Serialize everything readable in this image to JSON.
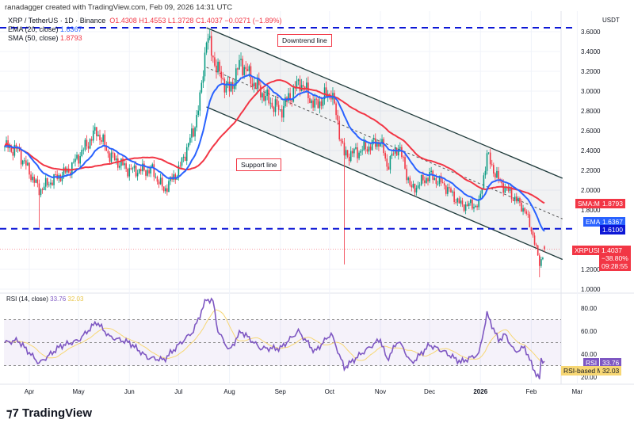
{
  "header": {
    "credit": "ranadagger created with TradingView.com, Feb 09, 2026 14:31 UTC",
    "symbol": "XRP / TetherUS · 1D · Binance",
    "o": "O1.4308",
    "h": "H1.4553",
    "l": "L1.3728",
    "c": "C1.4037",
    "chg": "−0.0271 (−1.89%)",
    "ema_label": "EMA (20, close)",
    "ema_val": "1.6367",
    "sma_label": "SMA (50, close)",
    "sma_val": "1.8793",
    "rsi_label": "RSI (14, close)",
    "rsi_val": "33.76",
    "rsi_ma_val": "32.03"
  },
  "axis": {
    "currency": "USDT",
    "price_ticks": [
      "3.6000",
      "3.4000",
      "3.2000",
      "3.0000",
      "2.8000",
      "2.6000",
      "2.4000",
      "2.2000",
      "2.0000",
      "1.8000",
      "1.2000",
      "1.0000"
    ],
    "rsi_ticks": [
      "80.00",
      "60.00",
      "40.00",
      "20.00"
    ],
    "time_ticks": [
      "Apr",
      "May",
      "Jun",
      "Jul",
      "Aug",
      "Sep",
      "Oct",
      "Nov",
      "Dec",
      "2026",
      "Feb",
      "Mar"
    ]
  },
  "tags": {
    "sma": "SMA:MA",
    "sma_val": "1.8793",
    "ema": "EMA",
    "ema_val": "1.6367",
    "level": "1.6100",
    "sym": "XRPUSDT",
    "price": "1.4037",
    "pct": "−38.80%",
    "timer": "09:28:55",
    "rsi": "RSI",
    "rsi_val": "33.76",
    "rsi_ma": "RSI-based MA",
    "rsi_ma_val": "32.03"
  },
  "annotations": {
    "downtrend": "Downtrend line",
    "support": "Support line"
  },
  "logo": "TradingView",
  "colors": {
    "up": "#089981",
    "down": "#f23645",
    "ema": "#2962ff",
    "sma": "#f23645",
    "rsi": "#7e57c2",
    "rsi_ma": "#f7d774",
    "level": "#0c17d6"
  },
  "chart_data": {
    "type": "candlestick",
    "title": "XRP / TetherUS · 1D · Binance",
    "ylim": [
      1.0,
      3.7
    ],
    "levels": [
      3.64,
      1.61
    ],
    "channel": {
      "upper": [
        [
          "2025-07-18",
          3.64
        ],
        [
          "2026-02-20",
          2.12
        ]
      ],
      "lower": [
        [
          "2025-07-18",
          2.84
        ],
        [
          "2026-02-20",
          1.3
        ]
      ]
    },
    "close_anchors": [
      [
        "2025-03-17",
        2.44
      ],
      [
        "2025-03-25",
        2.4
      ],
      [
        "2025-04-07",
        2.0
      ],
      [
        "2025-04-15",
        2.1
      ],
      [
        "2025-04-25",
        2.2
      ],
      [
        "2025-05-12",
        2.6
      ],
      [
        "2025-05-20",
        2.35
      ],
      [
        "2025-06-01",
        2.2
      ],
      [
        "2025-06-15",
        2.2
      ],
      [
        "2025-06-22",
        2.0
      ],
      [
        "2025-07-01",
        2.2
      ],
      [
        "2025-07-10",
        2.6
      ],
      [
        "2025-07-14",
        2.9
      ],
      [
        "2025-07-18",
        3.55
      ],
      [
        "2025-07-25",
        3.2
      ],
      [
        "2025-08-01",
        3.0
      ],
      [
        "2025-08-08",
        3.3
      ],
      [
        "2025-08-15",
        3.1
      ],
      [
        "2025-08-25",
        2.9
      ],
      [
        "2025-09-01",
        2.8
      ],
      [
        "2025-09-13",
        3.1
      ],
      [
        "2025-09-22",
        2.85
      ],
      [
        "2025-10-02",
        3.0
      ],
      [
        "2025-10-10",
        2.35
      ],
      [
        "2025-10-20",
        2.4
      ],
      [
        "2025-11-01",
        2.5
      ],
      [
        "2025-11-05",
        2.25
      ],
      [
        "2025-11-12",
        2.45
      ],
      [
        "2025-11-20",
        2.0
      ],
      [
        "2025-12-01",
        2.15
      ],
      [
        "2025-12-10",
        2.05
      ],
      [
        "2025-12-20",
        1.85
      ],
      [
        "2025-12-31",
        1.85
      ],
      [
        "2026-01-05",
        2.35
      ],
      [
        "2026-01-12",
        2.1
      ],
      [
        "2026-01-20",
        1.95
      ],
      [
        "2026-01-28",
        1.8
      ],
      [
        "2026-02-02",
        1.55
      ],
      [
        "2026-02-06",
        1.25
      ],
      [
        "2026-02-09",
        1.4037
      ]
    ],
    "rsi": {
      "overbought": 70,
      "middle": 50,
      "oversold": 30,
      "ylim": [
        10,
        92
      ],
      "anchors": [
        [
          "2025-03-17",
          50
        ],
        [
          "2025-03-25",
          52
        ],
        [
          "2025-04-07",
          32
        ],
        [
          "2025-04-20",
          47
        ],
        [
          "2025-05-01",
          52
        ],
        [
          "2025-05-12",
          68
        ],
        [
          "2025-05-20",
          55
        ],
        [
          "2025-06-01",
          50
        ],
        [
          "2025-06-12",
          37
        ],
        [
          "2025-06-22",
          35
        ],
        [
          "2025-07-01",
          48
        ],
        [
          "2025-07-10",
          60
        ],
        [
          "2025-07-18",
          88
        ],
        [
          "2025-07-22",
          86
        ],
        [
          "2025-07-25",
          60
        ],
        [
          "2025-08-01",
          43
        ],
        [
          "2025-08-08",
          60
        ],
        [
          "2025-08-20",
          45
        ],
        [
          "2025-09-01",
          45
        ],
        [
          "2025-09-12",
          60
        ],
        [
          "2025-09-22",
          42
        ],
        [
          "2025-10-02",
          58
        ],
        [
          "2025-10-10",
          28
        ],
        [
          "2025-10-20",
          40
        ],
        [
          "2025-11-01",
          53
        ],
        [
          "2025-11-05",
          35
        ],
        [
          "2025-11-12",
          52
        ],
        [
          "2025-11-20",
          32
        ],
        [
          "2025-12-01",
          48
        ],
        [
          "2025-12-10",
          42
        ],
        [
          "2025-12-20",
          33
        ],
        [
          "2025-12-31",
          40
        ],
        [
          "2026-01-05",
          75
        ],
        [
          "2026-01-12",
          52
        ],
        [
          "2026-01-16",
          57
        ],
        [
          "2026-01-22",
          42
        ],
        [
          "2026-01-28",
          46
        ],
        [
          "2026-02-02",
          28
        ],
        [
          "2026-02-06",
          18
        ],
        [
          "2026-02-07",
          35
        ],
        [
          "2026-02-09",
          33.76
        ]
      ]
    }
  }
}
